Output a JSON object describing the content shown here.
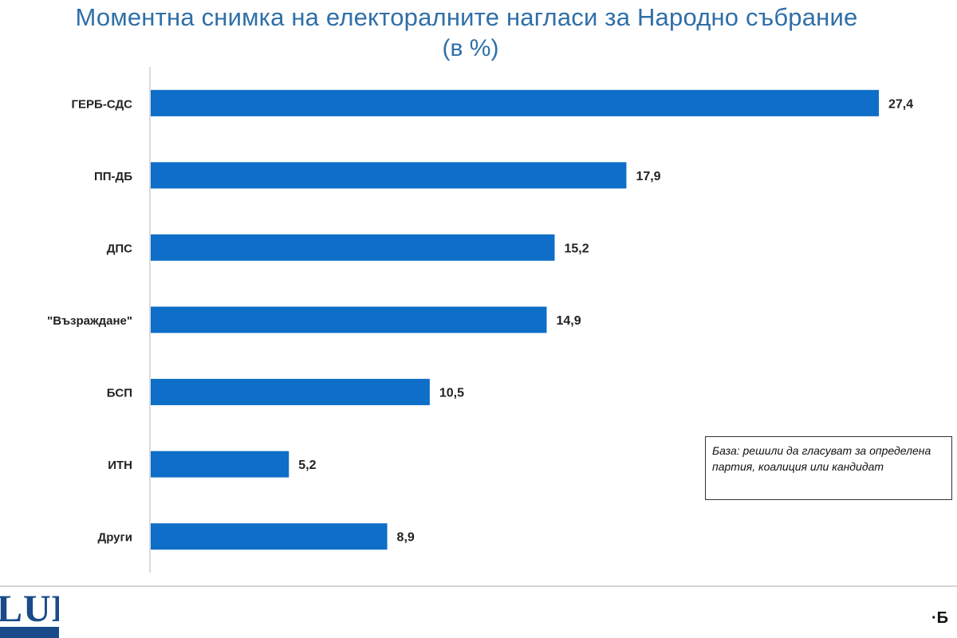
{
  "chart_data": {
    "type": "bar",
    "orientation": "horizontal",
    "title": "Моментна снимка на електоралните нагласи за Народно събрание",
    "subtitle": "(в %)",
    "categories": [
      "ГЕРБ-СДС",
      "ПП-ДБ",
      "ДПС",
      "\"Възраждане\"",
      "БСП",
      "ИТН",
      "Други"
    ],
    "values": [
      27.4,
      17.9,
      15.2,
      14.9,
      10.5,
      5.2,
      8.9
    ],
    "value_labels": [
      "27,4",
      "17,9",
      "15,2",
      "14,9",
      "10,5",
      "5,2",
      "8,9"
    ],
    "xlim": [
      0,
      30
    ],
    "grid": false,
    "bar_color": "#0e6ec8",
    "annotation": "База: решили да гласуват за определена партия, коалиция или кандидат"
  },
  "footer": {
    "logo_text": "LUP",
    "corner_mark": "·Б"
  }
}
